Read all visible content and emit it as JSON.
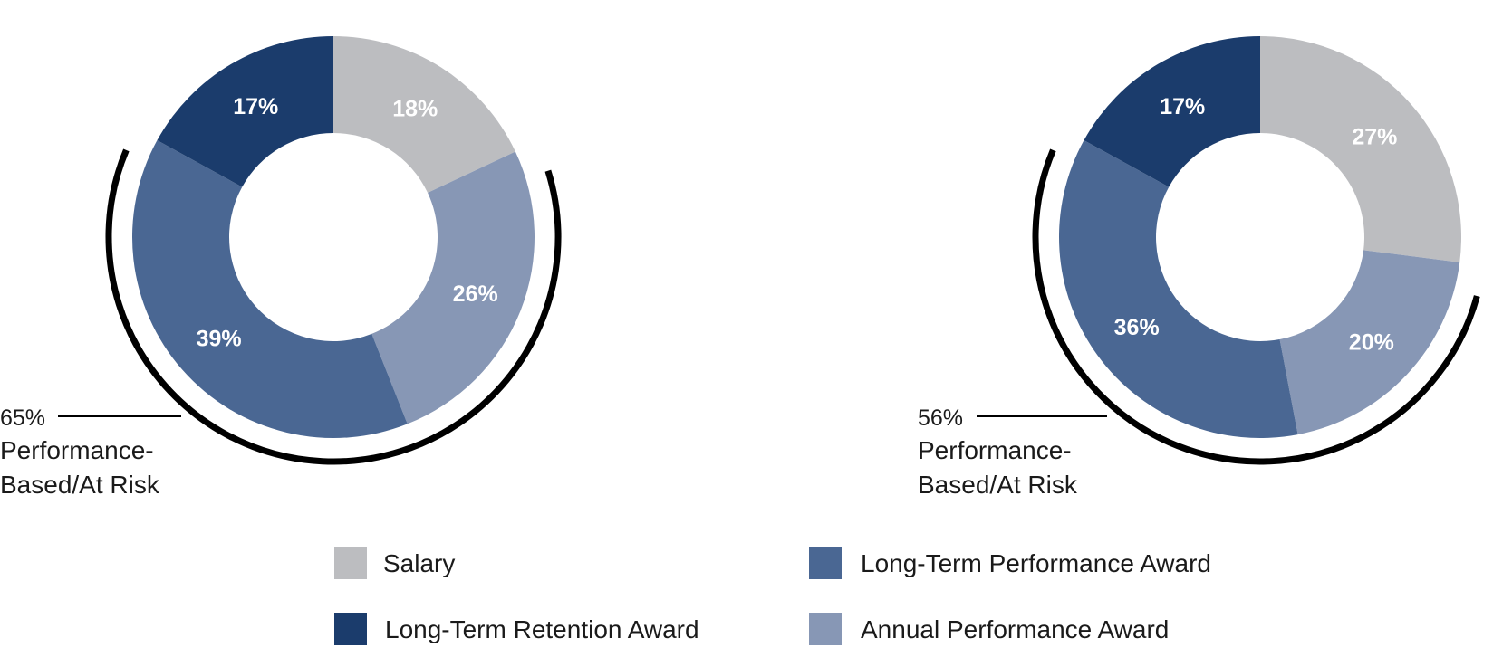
{
  "chart_data": [
    {
      "type": "donut",
      "slices": [
        {
          "category": "Salary",
          "value": 18,
          "label": "18%"
        },
        {
          "category": "Annual Performance Award",
          "value": 26,
          "label": "26%"
        },
        {
          "category": "Long-Term Performance Award",
          "value": 39,
          "label": "39%"
        },
        {
          "category": "Long-Term Retention Award",
          "value": 17,
          "label": "17%"
        }
      ],
      "annotation": {
        "percent": "65%",
        "line1": "Performance-",
        "line2": "Based/At Risk"
      }
    },
    {
      "type": "donut",
      "slices": [
        {
          "category": "Salary",
          "value": 27,
          "label": "27%"
        },
        {
          "category": "Annual Performance Award",
          "value": 20,
          "label": "20%"
        },
        {
          "category": "Long-Term Performance Award",
          "value": 36,
          "label": "36%"
        },
        {
          "category": "Long-Term Retention Award",
          "value": 17,
          "label": "17%"
        }
      ],
      "annotation": {
        "percent": "56%",
        "line1": "Performance-",
        "line2": "Based/At Risk"
      }
    }
  ],
  "colors": {
    "Salary": "#bcbdc0",
    "Annual Performance Award": "#8797b5",
    "Long-Term Performance Award": "#4a6793",
    "Long-Term Retention Award": "#1b3c6c",
    "bracket": "#000000"
  },
  "legend": [
    {
      "label": "Salary",
      "category": "Salary"
    },
    {
      "label": "Long-Term Performance Award",
      "category": "Long-Term Performance Award"
    },
    {
      "label": "Long-Term Retention Award",
      "category": "Long-Term Retention Award"
    },
    {
      "label": "Annual Performance Award",
      "category": "Annual Performance Award"
    }
  ]
}
